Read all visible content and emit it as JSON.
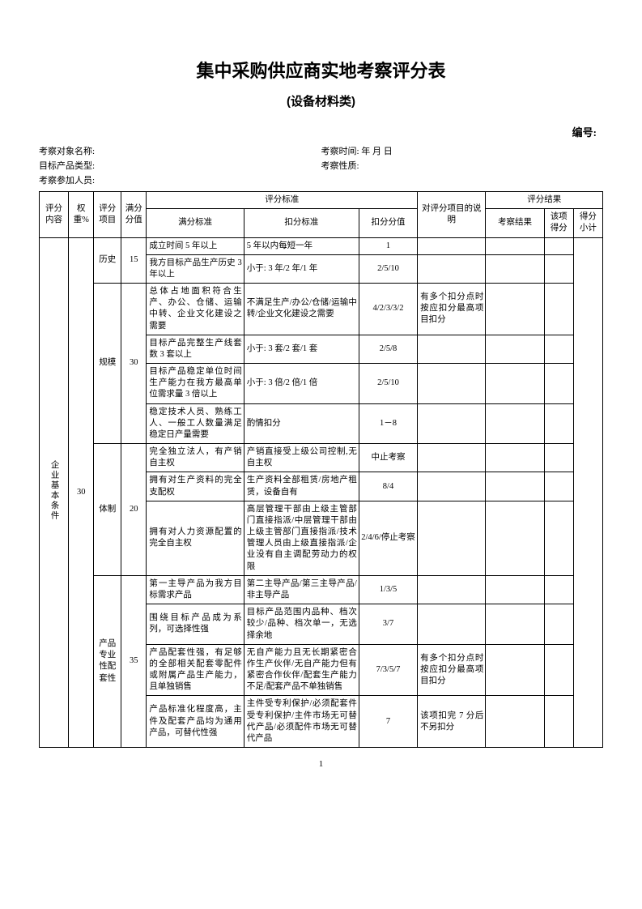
{
  "title": "集中采购供应商实地考察评分表",
  "subtitle": "(设备材料类)",
  "serial_label": "编号:",
  "meta": {
    "object_label": "考察对象名称:",
    "time_label": "考察时间:        年    月    日",
    "product_label": "目标产品类型:",
    "nature_label": "考察性质:",
    "participants_label": "考察参加人员:"
  },
  "headers": {
    "content": "评分内容",
    "weight": "权重%",
    "item": "评分项目",
    "full": "满分分值",
    "std_group": "评分标准",
    "std_full": "满分标准",
    "std_deduct": "扣分标准",
    "deduct_val": "扣分分值",
    "note": "对评分项目的说明",
    "result_group": "评分结果",
    "res_exam": "考察结果",
    "res_score": "该项得分",
    "res_sub": "得分小计"
  },
  "cat": {
    "name": "企业基本条件",
    "weight": "30"
  },
  "groups": [
    {
      "name": "历史",
      "full": "15",
      "rows": [
        {
          "std": "成立时间 5 年以上",
          "ded": "5 年以内每短一年",
          "val": "1",
          "note": ""
        },
        {
          "std": "我方目标产品生产历史 3 年以上",
          "ded": "小于: 3 年/2 年/1 年",
          "val": "2/5/10",
          "note": ""
        }
      ]
    },
    {
      "name": "规模",
      "full": "30",
      "rows": [
        {
          "std": "总体占地面积符合生产、办公、仓储、运输中转、企业文化建设之需要",
          "ded": "不满足生产/办公/仓储/运输中转/企业文化建设之需要",
          "val": "4/2/3/3/2",
          "note": "有多个扣分点时按应扣分最高项目扣分"
        },
        {
          "std": "目标产品完整生产线套数 3 套以上",
          "ded": "小于: 3 套/2 套/1 套",
          "val": "2/5/8",
          "note": ""
        },
        {
          "std": "目标产品稳定单位时间生产能力在我方最高单位需求量 3 倍以上",
          "ded": "小于: 3 倍/2 倍/1 倍",
          "val": "2/5/10",
          "note": ""
        },
        {
          "std": "稳定技术人员、熟练工人、一般工人数量满足稳定日产量需要",
          "ded": "酌情扣分",
          "val": "1－8",
          "note": ""
        }
      ]
    },
    {
      "name": "体制",
      "full": "20",
      "rows": [
        {
          "std": "完全独立法人，有产销自主权",
          "ded": "产销直接受上级公司控制,无自主权",
          "val": "中止考察",
          "note": ""
        },
        {
          "std": "拥有对生产资料的完全支配权",
          "ded": "生产资料全部租赁/房地产租赁，设备自有",
          "val": "8/4",
          "note": ""
        },
        {
          "std": "拥有对人力资源配置的完全自主权",
          "ded": "高层管理干部由上级主管部门直接指派/中层管理干部由上级主管部门直接指派/技术管理人员由上级直接指派/企业没有自主调配劳动力的权限",
          "val": "2/4/6/停止考察",
          "note": ""
        }
      ]
    },
    {
      "name": "产品专业性配套性",
      "full": "35",
      "rows": [
        {
          "std": "第一主导产品为我方目标需求产品",
          "ded": "第二主导产品/第三主导产品/非主导产品",
          "val": "1/3/5",
          "note": ""
        },
        {
          "std": "围绕目标产品成为系列，可选择性强",
          "ded": "目标产品范围内品种、档次较少/品种、档次单一，无选择余地",
          "val": "3/7",
          "note": ""
        },
        {
          "std": "产品配套性强，有足够的全部相关配套零配件或附属产品生产能力，且单独销售",
          "ded": "无自产能力且无长期紧密合作生产伙伴/无自产能力但有紧密合作伙伴/配套生产能力不足/配套产品不单独销售",
          "val": "7/3/5/7",
          "note": "有多个扣分点时按应扣分最高项目扣分"
        },
        {
          "std": "产品标准化程度高，主件及配套产品均为通用产品，可替代性强",
          "ded": "主件受专利保护/必须配套件受专利保护/主件市场无可替代产品/必须配件市场无可替代产品",
          "val": "7",
          "note": "该项扣完 7 分后不另扣分"
        }
      ]
    }
  ],
  "page_number": "1"
}
